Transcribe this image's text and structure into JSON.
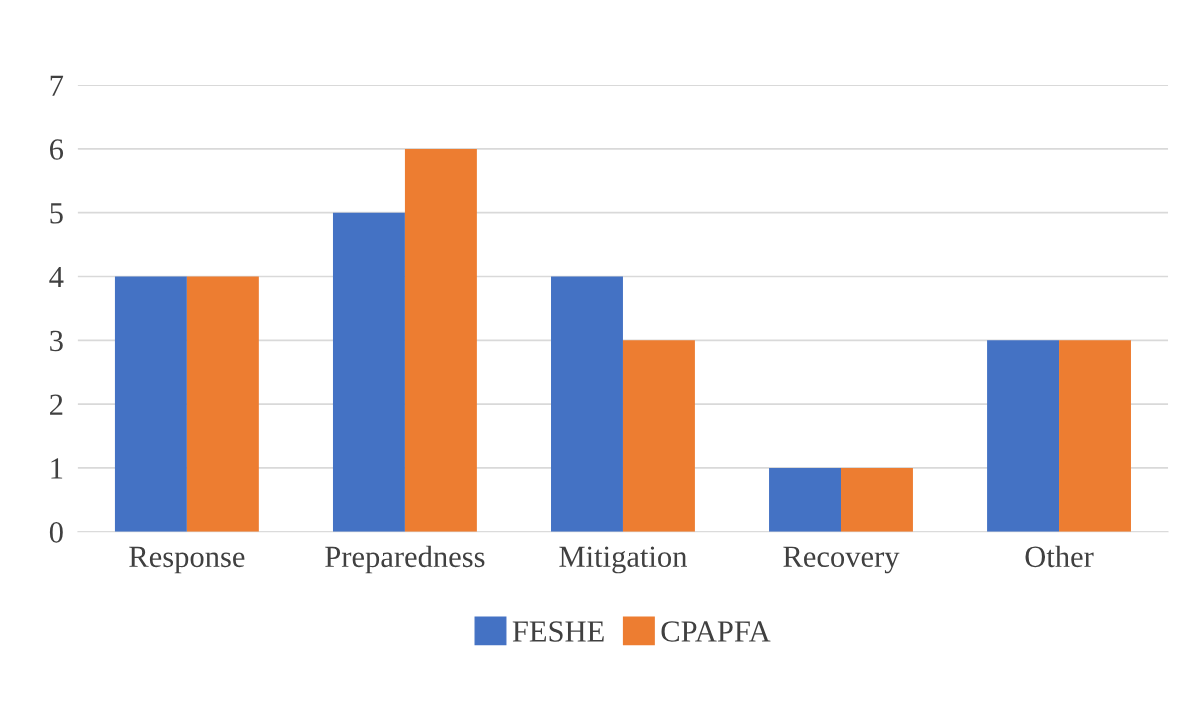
{
  "chart_data": {
    "type": "bar",
    "categories": [
      "Response",
      "Preparedness",
      "Mitigation",
      "Recovery",
      "Other"
    ],
    "series": [
      {
        "name": "FESHE",
        "color": "#4472c4",
        "values": [
          4,
          5,
          4,
          1,
          3
        ]
      },
      {
        "name": "CPAPFA",
        "color": "#ed7d31",
        "values": [
          4,
          6,
          3,
          1,
          3
        ]
      }
    ],
    "ylim": [
      0,
      7
    ],
    "yticks": [
      0,
      1,
      2,
      3,
      4,
      5,
      6,
      7
    ],
    "grid": "y",
    "legend": "bottom"
  }
}
